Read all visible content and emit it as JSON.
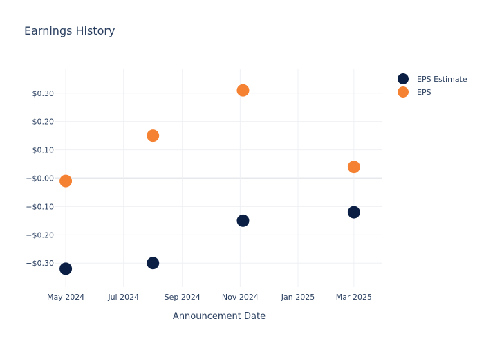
{
  "chart_data": {
    "type": "scatter",
    "title": "Earnings History",
    "xlabel": "Announcement Date",
    "ylabel": "",
    "x_ticks": [
      {
        "date": "2024-05-01",
        "label": "May 2024"
      },
      {
        "date": "2024-07-01",
        "label": "Jul 2024"
      },
      {
        "date": "2024-09-01",
        "label": "Sep 2024"
      },
      {
        "date": "2024-11-01",
        "label": "Nov 2024"
      },
      {
        "date": "2025-01-01",
        "label": "Jan 2025"
      },
      {
        "date": "2025-03-01",
        "label": "Mar 2025"
      }
    ],
    "xlim": [
      "2024-04-20",
      "2025-03-31"
    ],
    "y_ticks": [
      {
        "value": 0.3,
        "label": "$0.30"
      },
      {
        "value": 0.2,
        "label": "$0.20"
      },
      {
        "value": 0.1,
        "label": "$0.10"
      },
      {
        "value": 0,
        "label": "−$0.00"
      },
      {
        "value": -0.1,
        "label": "−$0.10"
      },
      {
        "value": -0.2,
        "label": "−$0.20"
      },
      {
        "value": -0.3,
        "label": "−$0.30"
      }
    ],
    "ylim": [
      -0.385,
      0.385
    ],
    "grid": true,
    "legend_position": "top-right",
    "series": [
      {
        "name": "EPS Estimate",
        "color": "#0b1f44",
        "points": [
          {
            "x": "2024-05-01",
            "y": -0.32
          },
          {
            "x": "2024-08-01",
            "y": -0.3
          },
          {
            "x": "2024-11-04",
            "y": -0.15
          },
          {
            "x": "2025-03-01",
            "y": -0.12
          }
        ]
      },
      {
        "name": "EPS",
        "color": "#f58232",
        "points": [
          {
            "x": "2024-05-01",
            "y": -0.01
          },
          {
            "x": "2024-08-01",
            "y": 0.15
          },
          {
            "x": "2024-11-04",
            "y": 0.31
          },
          {
            "x": "2025-03-01",
            "y": 0.04
          }
        ]
      }
    ]
  }
}
